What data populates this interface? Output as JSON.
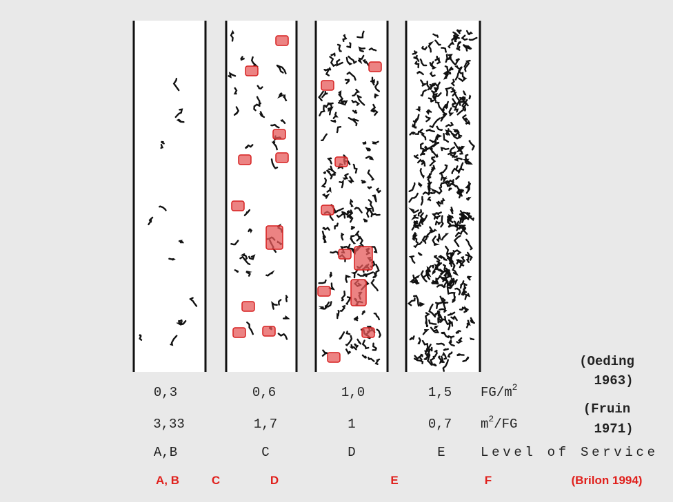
{
  "density_row": {
    "values": [
      "0,3",
      "0,6",
      "1,0",
      "1,5"
    ],
    "unit": {
      "base": "FG/m",
      "superscript": "2"
    },
    "source": [
      "(Oeding",
      "1963)"
    ]
  },
  "area_row": {
    "values": [
      "3,33",
      "1,7",
      "1",
      "0,7"
    ],
    "unit": {
      "base": "m",
      "superscript": "2",
      "rest": "/FG"
    },
    "source": [
      "(Fruin",
      "1971)"
    ]
  },
  "los_row": {
    "values": [
      "A,B",
      "C",
      "D",
      "E"
    ],
    "label": "Level of Service"
  },
  "brilon_row": {
    "values": [
      "A, B",
      "C",
      "D",
      "E",
      "F"
    ],
    "source": "(Brilon 1994)"
  }
}
